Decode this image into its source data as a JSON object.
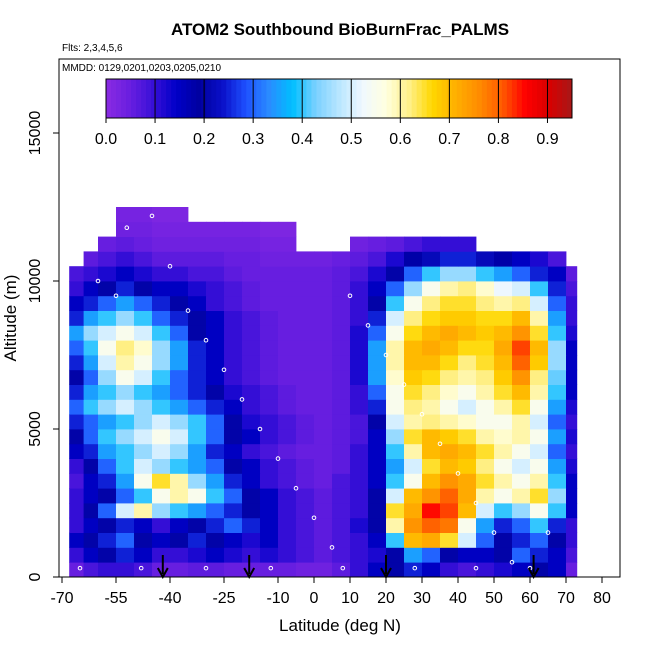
{
  "chart_data": {
    "type": "heatmap",
    "title": "ATOM2 Southbound BioBurnFrac_PALMS",
    "subtitle_flights": "Flts: 2,3,4,5,6",
    "subtitle_dates": "MMDD: 0129,0201,0203,0205,0210",
    "xlabel": "Latitude (deg N)",
    "ylabel": "Altitude (m)",
    "xlim": [
      -70,
      85
    ],
    "ylim": [
      0,
      17500
    ],
    "x_ticks": [
      -70,
      -55,
      -40,
      -25,
      -10,
      0,
      10,
      20,
      30,
      40,
      50,
      60,
      70,
      80
    ],
    "x_tick_labels": [
      "-70",
      "-55",
      "-40",
      "-25",
      "-10",
      "0",
      "10",
      "20",
      "30",
      "40",
      "50",
      "60",
      "70",
      "80"
    ],
    "y_ticks": [
      0,
      5000,
      10000,
      15000
    ],
    "y_tick_labels": [
      "0",
      "5000",
      "10000",
      "15000"
    ],
    "colorbar": {
      "range": [
        0,
        0.95
      ],
      "ticks": [
        0.0,
        0.1,
        0.2,
        0.3,
        0.4,
        0.5,
        0.6,
        0.7,
        0.8,
        0.9
      ],
      "tick_labels": [
        "0.0",
        "0.1",
        "0.2",
        "0.3",
        "0.4",
        "0.5",
        "0.6",
        "0.7",
        "0.8",
        "0.9"
      ],
      "colors": [
        "#8a2be2",
        "#6a1fe0",
        "#3a10d8",
        "#0000c8",
        "#0000a0",
        "#0a10c8",
        "#1e50ff",
        "#2a8cff",
        "#00bfff",
        "#7ad0ff",
        "#b8e6ff",
        "#f0f8ff",
        "#ffffe0",
        "#fff08a",
        "#ffd700",
        "#ffb000",
        "#ff8c00",
        "#ff5a00",
        "#ff0000",
        "#d80000",
        "#a81818"
      ],
      "placement": "top, inside plot"
    },
    "legend_placement": "top-center",
    "grid": false,
    "columns": [
      {
        "lat": -68,
        "alt_top": 10500
      },
      {
        "lat": -64,
        "alt_top": 11000
      },
      {
        "lat": -60,
        "alt_top": 11500
      },
      {
        "lat": -55,
        "alt_top": 12500
      },
      {
        "lat": -50,
        "alt_top": 12500
      },
      {
        "lat": -45,
        "alt_top": 12500
      },
      {
        "lat": -40,
        "alt_top": 12500
      },
      {
        "lat": -35,
        "alt_top": 12000
      },
      {
        "lat": -30,
        "alt_top": 12000
      },
      {
        "lat": -25,
        "alt_top": 12000
      },
      {
        "lat": -20,
        "alt_top": 12000
      },
      {
        "lat": -15,
        "alt_top": 12000
      },
      {
        "lat": -10,
        "alt_top": 12000
      },
      {
        "lat": -5,
        "alt_top": 11000
      },
      {
        "lat": 0,
        "alt_top": 11000
      },
      {
        "lat": 5,
        "alt_top": 11000
      },
      {
        "lat": 10,
        "alt_top": 11500
      },
      {
        "lat": 15,
        "alt_top": 11500
      },
      {
        "lat": 20,
        "alt_top": 11500
      },
      {
        "lat": 25,
        "alt_top": 11500
      },
      {
        "lat": 30,
        "alt_top": 11500
      },
      {
        "lat": 35,
        "alt_top": 11500
      },
      {
        "lat": 40,
        "alt_top": 11500
      },
      {
        "lat": 45,
        "alt_top": 11000
      },
      {
        "lat": 50,
        "alt_top": 11000
      },
      {
        "lat": 55,
        "alt_top": 11000
      },
      {
        "lat": 60,
        "alt_top": 11000
      },
      {
        "lat": 65,
        "alt_top": 11000
      },
      {
        "lat": 70,
        "alt_top": 10500
      }
    ],
    "layer_altitudes": [
      0,
      500,
      1000,
      1500,
      2000,
      2500,
      3000,
      3500,
      4000,
      4500,
      5000,
      5500,
      6000,
      6500,
      7000,
      7500,
      8000,
      8500,
      9000,
      9500,
      10000,
      10500,
      11000,
      11500,
      12000,
      12500
    ],
    "values": [
      [
        0.05,
        0.08,
        0.1,
        0.1,
        0.08,
        0.05,
        0.05,
        0.06,
        0.06,
        0.05,
        0.05,
        0.05,
        0.05,
        0.04,
        0.04,
        0.06,
        0.1,
        0.15,
        0.2,
        0.25,
        0.15,
        0.1,
        0.08,
        0.1,
        0.12,
        0.15,
        0.2,
        0.15,
        0.05
      ],
      [
        0.1,
        0.15,
        0.2,
        0.25,
        0.15,
        0.1,
        0.1,
        0.12,
        0.15,
        0.12,
        0.1,
        0.12,
        0.1,
        0.08,
        0.06,
        0.08,
        0.1,
        0.12,
        0.2,
        0.35,
        0.3,
        0.2,
        0.15,
        0.15,
        0.2,
        0.3,
        0.25,
        0.15,
        0.08
      ],
      [
        0.15,
        0.2,
        0.25,
        0.3,
        0.2,
        0.15,
        0.2,
        0.25,
        0.2,
        0.15,
        0.12,
        0.15,
        0.1,
        0.08,
        0.06,
        0.08,
        0.1,
        0.15,
        0.4,
        0.7,
        0.72,
        0.65,
        0.5,
        0.3,
        0.2,
        0.25,
        0.3,
        0.2,
        0.1
      ],
      [
        0.1,
        0.15,
        0.2,
        0.25,
        0.15,
        0.1,
        0.15,
        0.2,
        0.25,
        0.3,
        0.25,
        0.15,
        0.1,
        0.08,
        0.06,
        0.08,
        0.12,
        0.2,
        0.6,
        0.75,
        0.8,
        0.78,
        0.55,
        0.35,
        0.25,
        0.3,
        0.4,
        0.25,
        0.1
      ],
      [
        0.1,
        0.2,
        0.3,
        0.5,
        0.6,
        0.45,
        0.4,
        0.35,
        0.3,
        0.25,
        0.2,
        0.15,
        0.1,
        0.08,
        0.06,
        0.08,
        0.1,
        0.2,
        0.65,
        0.72,
        0.85,
        0.82,
        0.7,
        0.5,
        0.4,
        0.45,
        0.55,
        0.4,
        0.15
      ],
      [
        0.1,
        0.15,
        0.2,
        0.3,
        0.4,
        0.55,
        0.6,
        0.55,
        0.4,
        0.3,
        0.2,
        0.15,
        0.1,
        0.08,
        0.06,
        0.08,
        0.1,
        0.2,
        0.5,
        0.7,
        0.75,
        0.8,
        0.72,
        0.6,
        0.55,
        0.6,
        0.65,
        0.45,
        0.15
      ],
      [
        0.08,
        0.15,
        0.25,
        0.35,
        0.55,
        0.65,
        0.6,
        0.45,
        0.35,
        0.25,
        0.15,
        0.1,
        0.08,
        0.06,
        0.05,
        0.08,
        0.1,
        0.15,
        0.4,
        0.55,
        0.7,
        0.75,
        0.72,
        0.65,
        0.6,
        0.55,
        0.6,
        0.4,
        0.15
      ],
      [
        0.1,
        0.2,
        0.3,
        0.4,
        0.5,
        0.45,
        0.4,
        0.35,
        0.3,
        0.2,
        0.15,
        0.1,
        0.08,
        0.06,
        0.05,
        0.06,
        0.1,
        0.15,
        0.35,
        0.5,
        0.65,
        0.7,
        0.68,
        0.62,
        0.55,
        0.5,
        0.55,
        0.35,
        0.12
      ],
      [
        0.15,
        0.25,
        0.35,
        0.4,
        0.45,
        0.5,
        0.45,
        0.35,
        0.25,
        0.15,
        0.1,
        0.08,
        0.06,
        0.05,
        0.05,
        0.06,
        0.1,
        0.15,
        0.4,
        0.6,
        0.7,
        0.72,
        0.7,
        0.65,
        0.6,
        0.55,
        0.5,
        0.3,
        0.1
      ],
      [
        0.2,
        0.3,
        0.4,
        0.45,
        0.5,
        0.55,
        0.5,
        0.4,
        0.3,
        0.2,
        0.15,
        0.1,
        0.08,
        0.06,
        0.05,
        0.06,
        0.08,
        0.15,
        0.45,
        0.65,
        0.7,
        0.68,
        0.65,
        0.6,
        0.58,
        0.6,
        0.55,
        0.35,
        0.12
      ],
      [
        0.25,
        0.3,
        0.35,
        0.4,
        0.45,
        0.5,
        0.45,
        0.4,
        0.3,
        0.2,
        0.12,
        0.1,
        0.08,
        0.06,
        0.05,
        0.06,
        0.08,
        0.2,
        0.5,
        0.6,
        0.62,
        0.6,
        0.58,
        0.55,
        0.55,
        0.6,
        0.5,
        0.3,
        0.1
      ],
      [
        0.3,
        0.4,
        0.45,
        0.5,
        0.45,
        0.4,
        0.35,
        0.3,
        0.25,
        0.15,
        0.1,
        0.08,
        0.06,
        0.05,
        0.05,
        0.06,
        0.1,
        0.25,
        0.55,
        0.62,
        0.6,
        0.55,
        0.5,
        0.55,
        0.6,
        0.65,
        0.55,
        0.35,
        0.12
      ],
      [
        0.25,
        0.35,
        0.4,
        0.45,
        0.4,
        0.35,
        0.3,
        0.25,
        0.2,
        0.12,
        0.1,
        0.08,
        0.06,
        0.05,
        0.05,
        0.06,
        0.1,
        0.3,
        0.55,
        0.65,
        0.62,
        0.58,
        0.55,
        0.6,
        0.65,
        0.7,
        0.6,
        0.4,
        0.15
      ],
      [
        0.2,
        0.3,
        0.45,
        0.55,
        0.5,
        0.4,
        0.3,
        0.25,
        0.15,
        0.1,
        0.08,
        0.06,
        0.05,
        0.05,
        0.05,
        0.06,
        0.12,
        0.35,
        0.58,
        0.68,
        0.66,
        0.62,
        0.6,
        0.62,
        0.68,
        0.75,
        0.62,
        0.42,
        0.15
      ],
      [
        0.25,
        0.35,
        0.5,
        0.6,
        0.55,
        0.45,
        0.35,
        0.25,
        0.15,
        0.1,
        0.08,
        0.06,
        0.05,
        0.05,
        0.05,
        0.06,
        0.12,
        0.35,
        0.6,
        0.7,
        0.7,
        0.66,
        0.62,
        0.65,
        0.7,
        0.8,
        0.68,
        0.45,
        0.15
      ],
      [
        0.3,
        0.4,
        0.55,
        0.62,
        0.58,
        0.45,
        0.35,
        0.25,
        0.15,
        0.1,
        0.08,
        0.06,
        0.05,
        0.05,
        0.05,
        0.06,
        0.12,
        0.35,
        0.6,
        0.7,
        0.72,
        0.7,
        0.66,
        0.66,
        0.72,
        0.82,
        0.7,
        0.45,
        0.15
      ],
      [
        0.35,
        0.45,
        0.5,
        0.55,
        0.5,
        0.4,
        0.3,
        0.2,
        0.15,
        0.1,
        0.08,
        0.06,
        0.05,
        0.05,
        0.05,
        0.06,
        0.12,
        0.3,
        0.55,
        0.66,
        0.7,
        0.72,
        0.7,
        0.68,
        0.7,
        0.75,
        0.65,
        0.4,
        0.12
      ],
      [
        0.25,
        0.35,
        0.4,
        0.45,
        0.4,
        0.3,
        0.25,
        0.2,
        0.15,
        0.1,
        0.08,
        0.06,
        0.05,
        0.05,
        0.05,
        0.06,
        0.1,
        0.25,
        0.5,
        0.62,
        0.66,
        0.68,
        0.68,
        0.66,
        0.66,
        0.7,
        0.6,
        0.35,
        0.1
      ],
      [
        0.15,
        0.25,
        0.3,
        0.35,
        0.3,
        0.25,
        0.2,
        0.15,
        0.1,
        0.08,
        0.06,
        0.05,
        0.05,
        0.05,
        0.05,
        0.06,
        0.1,
        0.2,
        0.4,
        0.55,
        0.62,
        0.65,
        0.65,
        0.62,
        0.6,
        0.62,
        0.5,
        0.3,
        0.1
      ],
      [
        0.1,
        0.15,
        0.2,
        0.25,
        0.2,
        0.15,
        0.15,
        0.12,
        0.1,
        0.08,
        0.06,
        0.05,
        0.05,
        0.05,
        0.05,
        0.06,
        0.1,
        0.15,
        0.3,
        0.45,
        0.55,
        0.6,
        0.62,
        0.58,
        0.52,
        0.5,
        0.4,
        0.25,
        0.08
      ],
      [
        0.08,
        0.1,
        0.12,
        0.15,
        0.12,
        0.1,
        0.1,
        0.08,
        0.08,
        0.06,
        0.05,
        0.05,
        0.05,
        0.05,
        0.05,
        0.06,
        0.08,
        0.12,
        0.2,
        0.3,
        0.4,
        0.45,
        0.45,
        0.4,
        0.35,
        0.3,
        0.25,
        0.15,
        0.06
      ],
      [
        0.05,
        0.06,
        0.08,
        0.1,
        0.08,
        0.06,
        0.06,
        0.06,
        0.06,
        0.05,
        0.05,
        0.04,
        0.04,
        0.04,
        0.04,
        0.05,
        0.06,
        0.08,
        0.12,
        0.18,
        0.22,
        0.25,
        0.25,
        0.22,
        0.18,
        0.15,
        0.12,
        0.08,
        0.04
      ],
      [
        0.03,
        0.04,
        0.05,
        0.06,
        0.05,
        0.04,
        0.04,
        0.04,
        0.04,
        0.04,
        0.04,
        0.03,
        0.03,
        0.03,
        0.03,
        0.04,
        0.04,
        0.05,
        0.06,
        0.08,
        0.1,
        0.1,
        0.1,
        0.08,
        0.06,
        0.05,
        0.05,
        0.04,
        0.03
      ],
      [
        0.02,
        0.02,
        0.03,
        0.04,
        0.04,
        0.03,
        0.03,
        0.03,
        0.03,
        0.03,
        0.03,
        0.02,
        0.02,
        0.02,
        0.02,
        0.03,
        0.03,
        0.04,
        0.04,
        0.05,
        0.06,
        0.06,
        0.05,
        0.04,
        0.04,
        0.03,
        0.03,
        0.03,
        0.02
      ],
      [
        0.01,
        0.01,
        0.02,
        0.03,
        0.03,
        0.02,
        0.02,
        0.02,
        0.02,
        0.02,
        0.02,
        0.02,
        0.02,
        0.01,
        0.01,
        0.02,
        0.02,
        0.02,
        0.03,
        0.03,
        0.03,
        0.03,
        0.03,
        0.02,
        0.02,
        0.02,
        0.02,
        0.02,
        0.01
      ],
      [
        0.01,
        0.01,
        0.01,
        0.02,
        0.02,
        0.02,
        0.02,
        0.02,
        0.02,
        0.02,
        0.02,
        0.01,
        0.01,
        0.01,
        0.01,
        0.01,
        0.02,
        0.02,
        0.02,
        0.02,
        0.02,
        0.02,
        0.02,
        0.02,
        0.02,
        0.01,
        0.01,
        0.01,
        0.01
      ]
    ],
    "flight_track_points": [
      {
        "lat": -60,
        "alt": 10000
      },
      {
        "lat": -55,
        "alt": 9500
      },
      {
        "lat": -52,
        "alt": 11800
      },
      {
        "lat": -45,
        "alt": 12200
      },
      {
        "lat": -40,
        "alt": 10500
      },
      {
        "lat": -35,
        "alt": 9000
      },
      {
        "lat": -30,
        "alt": 8000
      },
      {
        "lat": -25,
        "alt": 7000
      },
      {
        "lat": -20,
        "alt": 6000
      },
      {
        "lat": -15,
        "alt": 5000
      },
      {
        "lat": -10,
        "alt": 4000
      },
      {
        "lat": -5,
        "alt": 3000
      },
      {
        "lat": 0,
        "alt": 2000
      },
      {
        "lat": 5,
        "alt": 1000
      },
      {
        "lat": 10,
        "alt": 9500
      },
      {
        "lat": 15,
        "alt": 8500
      },
      {
        "lat": 20,
        "alt": 7500
      },
      {
        "lat": 25,
        "alt": 6500
      },
      {
        "lat": 30,
        "alt": 5500
      },
      {
        "lat": 35,
        "alt": 4500
      },
      {
        "lat": 40,
        "alt": 3500
      },
      {
        "lat": 45,
        "alt": 2500
      },
      {
        "lat": 50,
        "alt": 1500
      },
      {
        "lat": 55,
        "alt": 500
      },
      {
        "lat": 60,
        "alt": 300
      },
      {
        "lat": 65,
        "alt": 1500
      },
      {
        "lat": -65,
        "alt": 300
      },
      {
        "lat": -48,
        "alt": 300
      },
      {
        "lat": -30,
        "alt": 300
      },
      {
        "lat": -12,
        "alt": 300
      },
      {
        "lat": 8,
        "alt": 300
      },
      {
        "lat": 28,
        "alt": 300
      },
      {
        "lat": 45,
        "alt": 300
      }
    ],
    "arrow_latitudes": [
      -42,
      -18,
      20,
      61
    ]
  }
}
